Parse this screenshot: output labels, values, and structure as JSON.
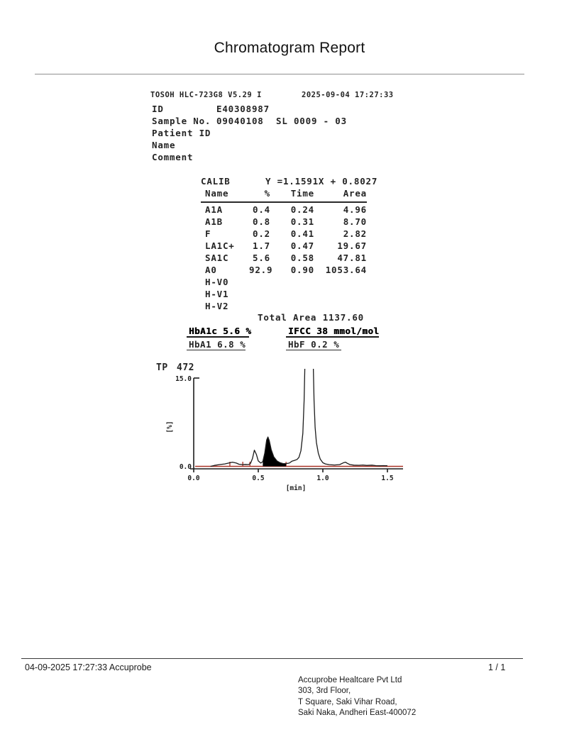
{
  "title": "Chromatogram Report",
  "device_header": {
    "model": "TOSOH HLC-723G8  V5.29  I",
    "datetime": "2025-09-04 17:27:33"
  },
  "sample_info": [
    {
      "label": "ID",
      "value": "E40308987",
      "extra": ""
    },
    {
      "label": "Sample No.",
      "value": "09040108",
      "extra": "SL 0009 - 03"
    },
    {
      "label": "Patient ID",
      "value": "",
      "extra": ""
    },
    {
      "label": "Name",
      "value": "",
      "extra": ""
    },
    {
      "label": "Comment",
      "value": "",
      "extra": ""
    }
  ],
  "calib": {
    "label": "CALIB",
    "equation": "Y =1.1591X + 0.8027",
    "columns": [
      "Name",
      "%",
      "Time",
      "Area"
    ],
    "rows": [
      [
        "A1A",
        "0.4",
        "0.24",
        "4.96"
      ],
      [
        "A1B",
        "0.8",
        "0.31",
        "8.70"
      ],
      [
        "F",
        "0.2",
        "0.41",
        "2.82"
      ],
      [
        "LA1C+",
        "1.7",
        "0.47",
        "19.67"
      ],
      [
        "SA1C",
        "5.6",
        "0.58",
        "47.81"
      ],
      [
        "A0",
        "92.9",
        "0.90",
        "1053.64"
      ],
      [
        "H-V0",
        "",
        "",
        ""
      ],
      [
        "H-V1",
        "",
        "",
        ""
      ],
      [
        "H-V2",
        "",
        "",
        ""
      ]
    ],
    "total_label": "Total Area",
    "total_value": "1137.60"
  },
  "results": {
    "hba1c": "HbA1c 5.6 %",
    "ifcc": "IFCC 38 mmol/mol",
    "hba1": "HbA1 6.8 %",
    "hbf": "HbF 0.2 %"
  },
  "chromatogram": {
    "tp_label": "TP",
    "tp_value": "472",
    "y_top": "15.0",
    "y_bottom": "0.0",
    "y_unit": "[%]",
    "x_unit": "[min]"
  },
  "chart_data": {
    "type": "line",
    "title": "HbA1c chromatogram trace",
    "xlabel": "[min]",
    "ylabel": "[%]",
    "xlim": [
      0,
      1.6
    ],
    "ylim": [
      0,
      15
    ],
    "x_ticks": [
      0.0,
      0.5,
      1.0,
      1.5
    ],
    "y_ticks": [
      0.0,
      15.0
    ],
    "trace_color": "#1c1c1c",
    "baseline_color": "#a93226",
    "peaks": [
      {
        "name": "A1A",
        "time": 0.24,
        "pct": 0.4
      },
      {
        "name": "A1B",
        "time": 0.31,
        "pct": 0.8
      },
      {
        "name": "F",
        "time": 0.41,
        "pct": 0.2
      },
      {
        "name": "LA1C+",
        "time": 0.47,
        "pct": 1.7
      },
      {
        "name": "SA1C",
        "time": 0.58,
        "pct": 5.6
      },
      {
        "name": "A0",
        "time": 0.9,
        "pct": 92.9
      }
    ],
    "peak_boundary_ticks_min": [
      0.28,
      0.38,
      0.435,
      0.54,
      0.715
    ],
    "filled_peak": {
      "name": "SA1C",
      "from_min": 0.535,
      "to_min": 0.715
    },
    "trace": [
      [
        0.13,
        0.0
      ],
      [
        0.16,
        0.15
      ],
      [
        0.2,
        0.3
      ],
      [
        0.24,
        0.4
      ],
      [
        0.27,
        0.55
      ],
      [
        0.3,
        0.7
      ],
      [
        0.33,
        0.55
      ],
      [
        0.35,
        0.35
      ],
      [
        0.375,
        0.3
      ],
      [
        0.4,
        0.32
      ],
      [
        0.425,
        0.3
      ],
      [
        0.44,
        0.5
      ],
      [
        0.455,
        1.3
      ],
      [
        0.47,
        2.7
      ],
      [
        0.485,
        2.0
      ],
      [
        0.5,
        0.9
      ],
      [
        0.52,
        0.55
      ],
      [
        0.535,
        0.8
      ],
      [
        0.55,
        2.2
      ],
      [
        0.565,
        4.4
      ],
      [
        0.575,
        4.9
      ],
      [
        0.585,
        4.3
      ],
      [
        0.6,
        2.8
      ],
      [
        0.62,
        1.6
      ],
      [
        0.645,
        0.9
      ],
      [
        0.67,
        0.6
      ],
      [
        0.695,
        0.45
      ],
      [
        0.715,
        0.45
      ],
      [
        0.74,
        0.55
      ],
      [
        0.76,
        0.85
      ],
      [
        0.78,
        1.0
      ],
      [
        0.8,
        1.15
      ],
      [
        0.815,
        1.5
      ],
      [
        0.83,
        2.6
      ],
      [
        0.845,
        5.5
      ],
      [
        0.855,
        11.0
      ],
      [
        0.862,
        18.0
      ],
      [
        0.925,
        18.0
      ],
      [
        0.932,
        11.0
      ],
      [
        0.94,
        6.5
      ],
      [
        0.95,
        4.0
      ],
      [
        0.965,
        2.2
      ],
      [
        0.98,
        1.2
      ],
      [
        1.0,
        0.6
      ],
      [
        1.02,
        0.4
      ],
      [
        1.05,
        0.28
      ],
      [
        1.09,
        0.22
      ],
      [
        1.13,
        0.3
      ],
      [
        1.16,
        0.6
      ],
      [
        1.175,
        0.7
      ],
      [
        1.19,
        0.5
      ],
      [
        1.21,
        0.3
      ],
      [
        1.24,
        0.2
      ],
      [
        1.28,
        0.18
      ],
      [
        1.31,
        0.22
      ],
      [
        1.34,
        0.15
      ],
      [
        1.38,
        0.2
      ],
      [
        1.41,
        0.12
      ],
      [
        1.44,
        0.1
      ],
      [
        1.47,
        0.12
      ],
      [
        1.5,
        0.1
      ]
    ]
  },
  "footer": {
    "left": "04-09-2025 17:27:33  Accuprobe",
    "page": "1 / 1",
    "address": [
      "Accuprobe Healtcare Pvt Ltd",
      "303, 3rd Floor,",
      "T Square, Saki Vihar Road,",
      "Saki Naka, Andheri East-400072"
    ]
  }
}
